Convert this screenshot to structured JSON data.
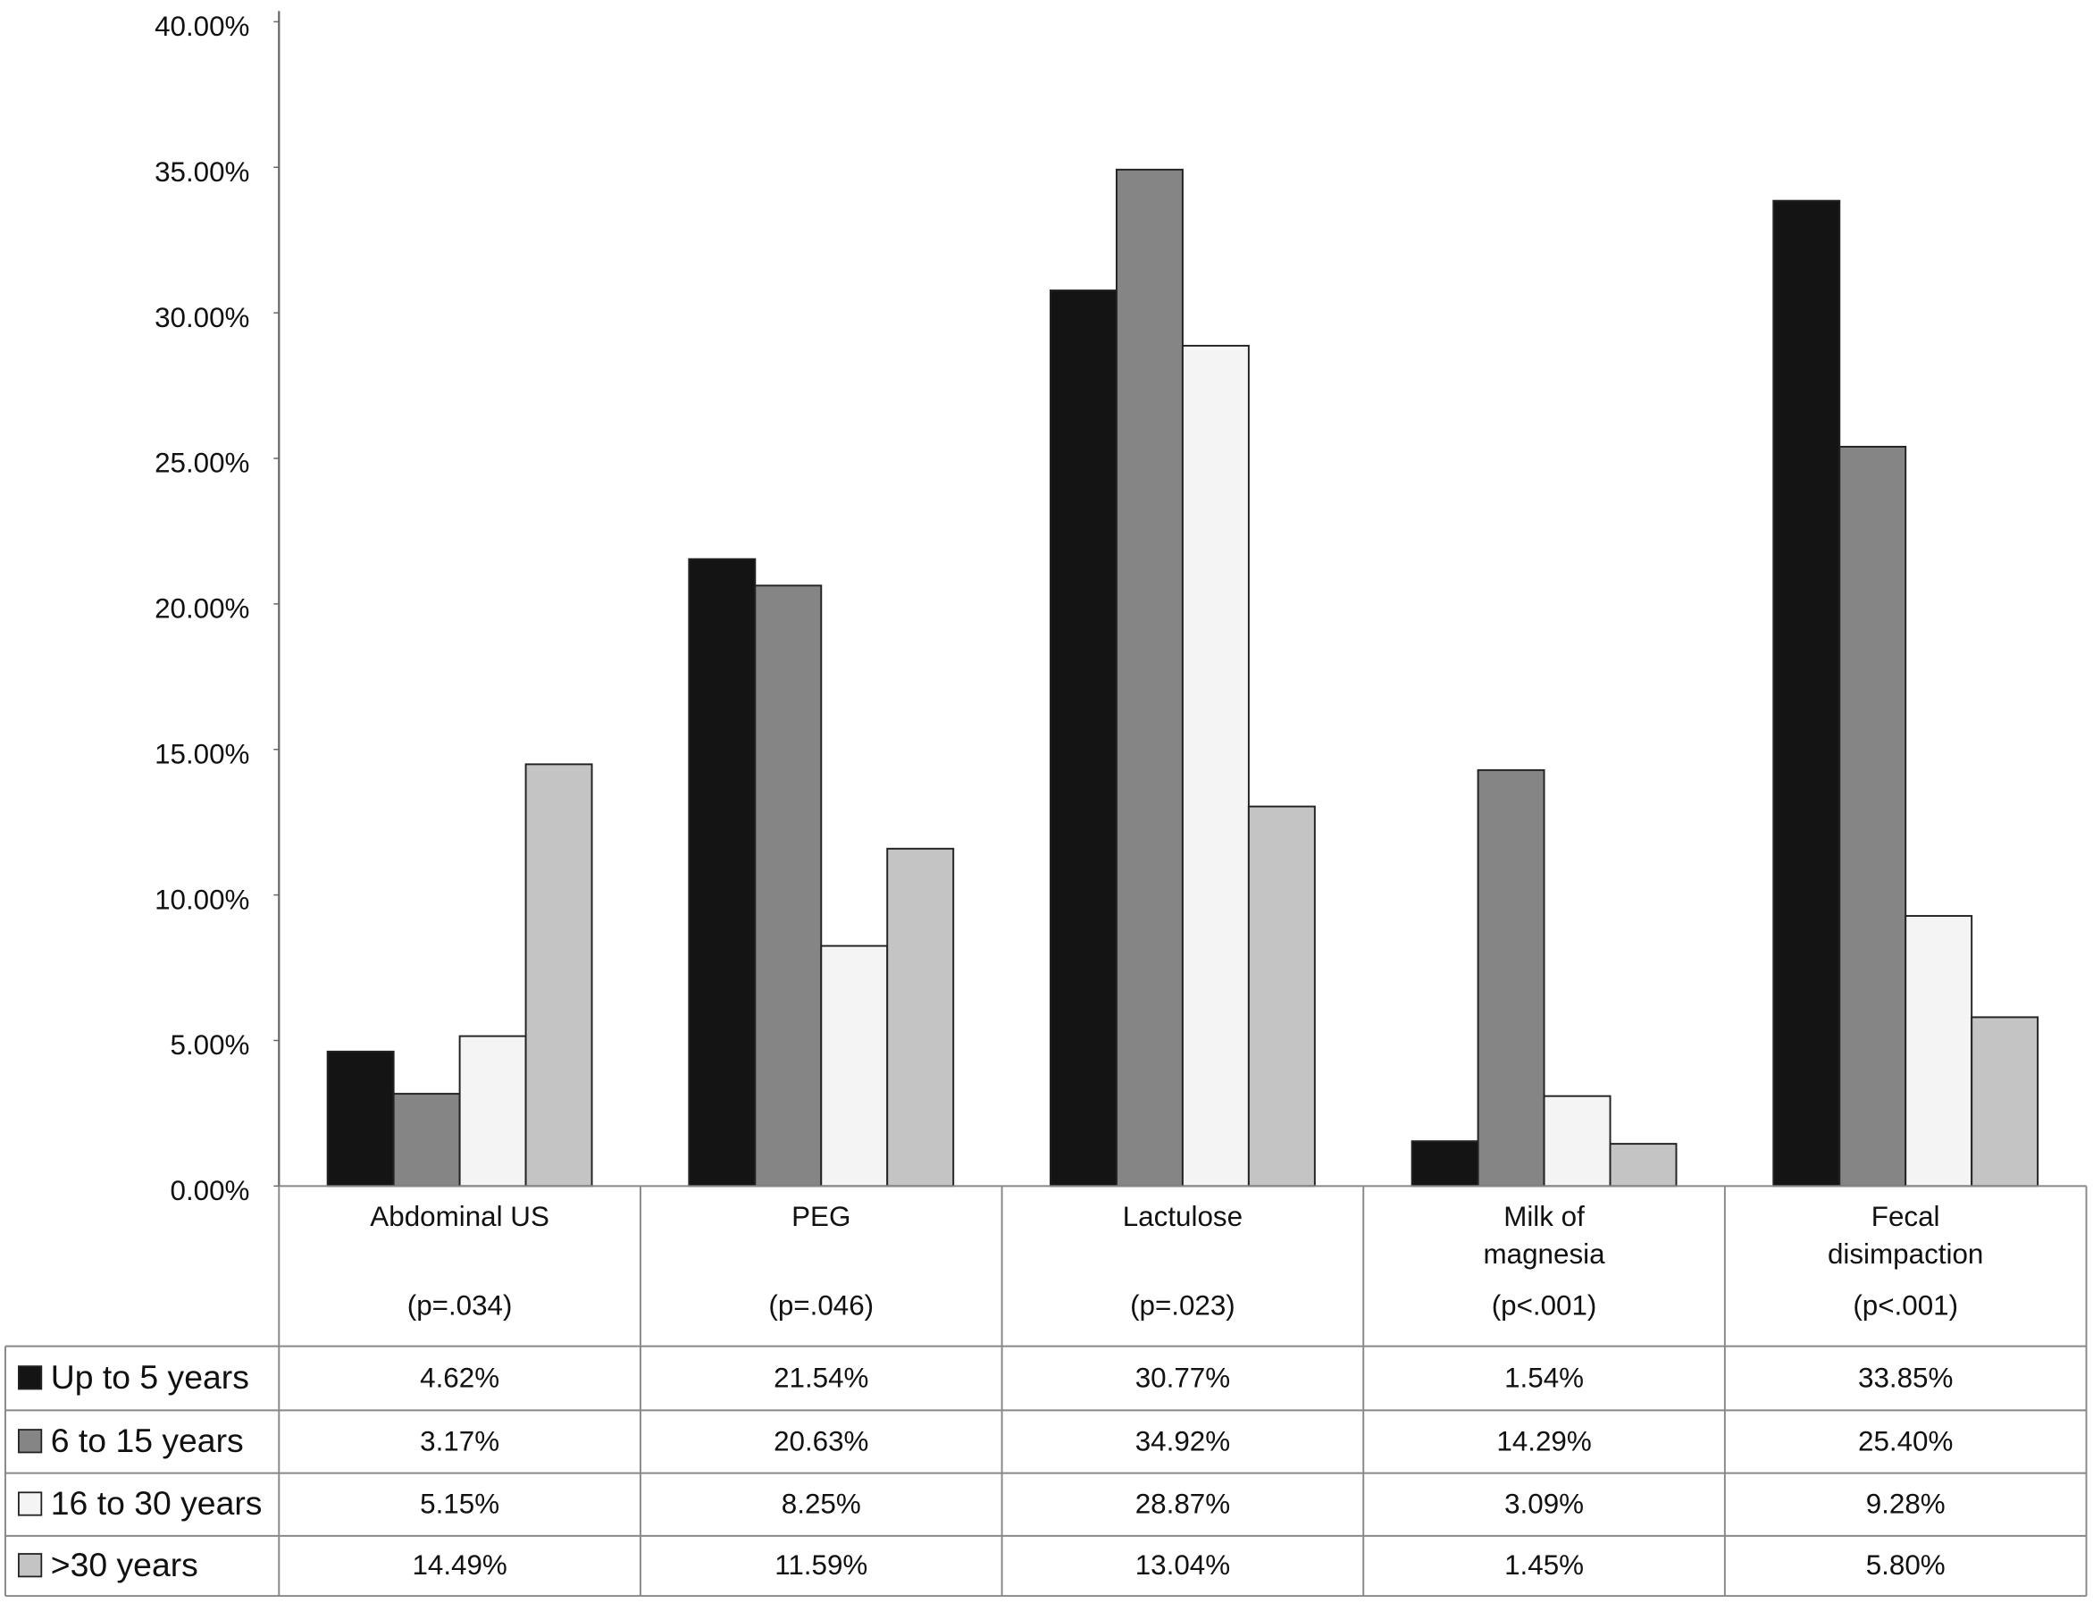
{
  "chart_data": {
    "type": "bar",
    "categories": [
      "Abdominal US",
      "PEG",
      "Lactulose",
      "Milk of magnesia",
      "Fecal disimpaction"
    ],
    "p_values": [
      "(p=.034)",
      "(p=.046)",
      "(p=.023)",
      "(p<.001)",
      "(p<.001)"
    ],
    "series": [
      {
        "name": "Up to 5 years",
        "color": "#141414",
        "values": [
          4.62,
          21.54,
          30.77,
          1.54,
          33.85
        ],
        "value_labels": [
          "4.62%",
          "21.54%",
          "30.77%",
          "1.54%",
          "33.85%"
        ]
      },
      {
        "name": "6 to 15 years",
        "color": "#858585",
        "values": [
          3.17,
          20.63,
          34.92,
          14.29,
          25.4
        ],
        "value_labels": [
          "3.17%",
          "20.63%",
          "34.92%",
          "14.29%",
          "25.40%"
        ]
      },
      {
        "name": "16 to 30 years",
        "color": "#f4f4f4",
        "values": [
          5.15,
          8.25,
          28.87,
          3.09,
          9.28
        ],
        "value_labels": [
          "5.15%",
          "8.25%",
          "28.87%",
          "3.09%",
          "9.28%"
        ]
      },
      {
        "name": ">30 years",
        "color": "#c4c4c4",
        "values": [
          14.49,
          11.59,
          13.04,
          1.45,
          5.8
        ],
        "value_labels": [
          "14.49%",
          "11.59%",
          "13.04%",
          "1.45%",
          "5.80%"
        ]
      }
    ],
    "ylim": [
      0,
      40
    ],
    "yticks": [
      {
        "value": 0,
        "label": "0.00%"
      },
      {
        "value": 5,
        "label": "5.00%"
      },
      {
        "value": 10,
        "label": "10.00%"
      },
      {
        "value": 15,
        "label": "15.00%"
      },
      {
        "value": 20,
        "label": "20.00%"
      },
      {
        "value": 25,
        "label": "25.00%"
      },
      {
        "value": 30,
        "label": "30.00%"
      },
      {
        "value": 35,
        "label": "35.00%"
      },
      {
        "value": 40,
        "label": "40.00%"
      }
    ],
    "grid": false
  }
}
